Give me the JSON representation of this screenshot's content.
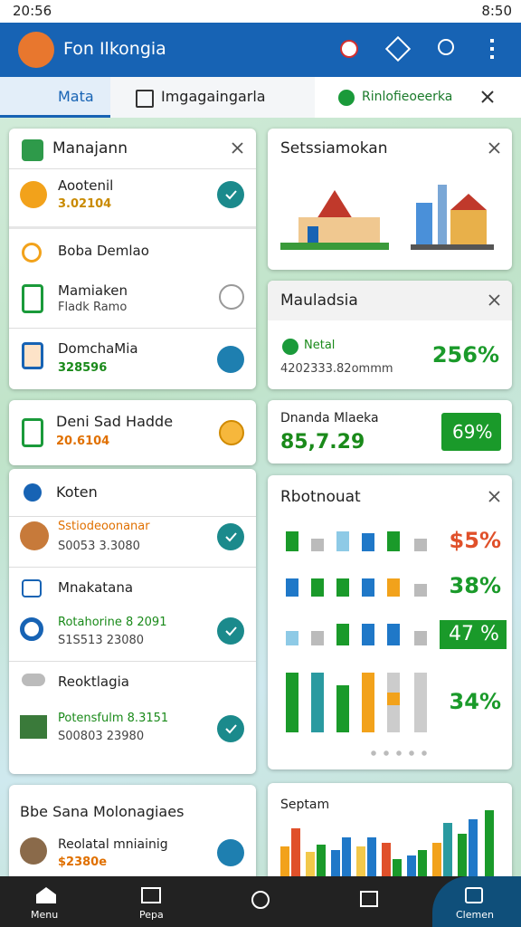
{
  "status_bar": {
    "time": "20:56",
    "clock": "8:50"
  },
  "app_bar": {
    "title": "Fon Ilkongia"
  },
  "tabs": [
    "Mata",
    "Imgagaingarla",
    "Rinlofieoeerka"
  ],
  "left_cards": [
    {
      "title": "Manajann",
      "items": [
        {
          "title": "Aootenil",
          "subtitle": "3.02104"
        },
        {
          "title": "Boba Demlao"
        },
        {
          "title": "Mamiaken",
          "subtitle": "Fladk Ramo"
        },
        {
          "title": "DomchaMia",
          "subtitle": "328596"
        }
      ]
    },
    {
      "title": "Deni Sad Hadde",
      "subtitle": "20.6104"
    },
    {
      "title": "Koten",
      "items": [
        {
          "title": "Sstiodeoonanar",
          "subtitle": "S0053 3.3080"
        },
        {
          "title": "Mnakatana"
        },
        {
          "title": "Rotahorine 8 2091",
          "subtitle": "S1S513 23080"
        },
        {
          "title": "Reoktlagia"
        },
        {
          "title": "Potensfulm 8.3151",
          "subtitle": "S00803 23980"
        }
      ]
    },
    {
      "title": "Bbe Sana Molonagiaes",
      "items": [
        {
          "title": "Reolatal mniainig",
          "subtitle": "$2380e"
        }
      ]
    }
  ],
  "right_cards": [
    {
      "title": "Setssiamokan"
    },
    {
      "title": "Mauladsia",
      "label": "Netal",
      "detail": "4202333.82ommm",
      "value": "256%"
    },
    {
      "title": "Dnanda Mlaeka",
      "detail": "85,7.29",
      "value": "69%"
    },
    {
      "title": "Rbotnouat",
      "values": [
        "$5%",
        "38%",
        "47 %",
        "34%"
      ]
    },
    {
      "title": "Septam"
    }
  ],
  "bottom_nav": [
    "Menu",
    "Pepa",
    "Clemen"
  ]
}
